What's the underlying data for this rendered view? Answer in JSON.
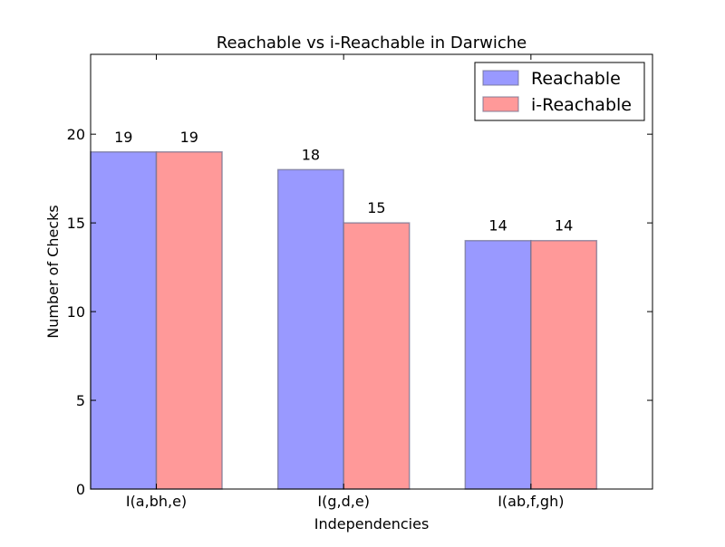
{
  "chart_data": {
    "type": "bar",
    "title": "Reachable vs i-Reachable in Darwiche",
    "xlabel": "Independencies",
    "ylabel": "Number of Checks",
    "categories": [
      "I(a,bh,e)",
      "I(g,d,e)",
      "I(ab,f,gh)"
    ],
    "series": [
      {
        "name": "Reachable",
        "values": [
          19,
          18,
          14
        ],
        "color": "#9999ff",
        "data_labels": [
          "19",
          "18",
          "14"
        ]
      },
      {
        "name": "i-Reachable",
        "values": [
          19,
          15,
          14
        ],
        "color": "#ff9999",
        "data_labels": [
          "19",
          "15",
          "14"
        ]
      }
    ],
    "ylim": [
      0,
      24.5
    ],
    "yticks": [
      "0",
      "5",
      "10",
      "15",
      "20"
    ],
    "legend": "top-right",
    "grid": false
  }
}
